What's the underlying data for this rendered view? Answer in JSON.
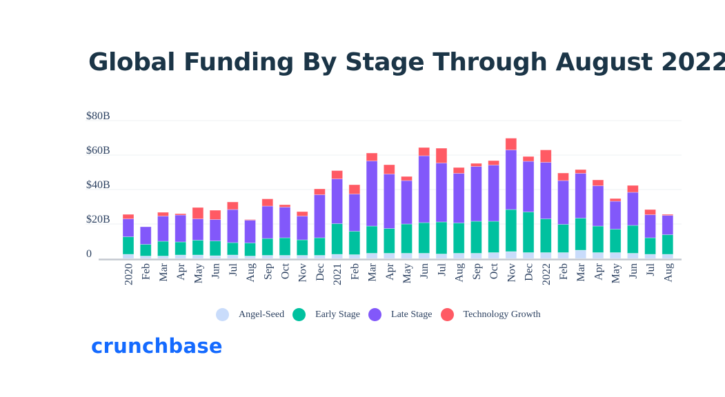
{
  "title": "Global Funding By Stage Through August 2022",
  "brand": "crunchbase",
  "chart_data": {
    "type": "bar",
    "stacked": true,
    "title": "Global Funding By Stage Through August 2022",
    "xlabel": "",
    "ylabel": "",
    "ylim": [
      0,
      80
    ],
    "yticks": [
      0,
      20,
      40,
      60,
      80
    ],
    "ytick_labels": [
      "0",
      "$20B",
      "$40B",
      "$60B",
      "$80B"
    ],
    "grid": true,
    "legend_position": "bottom",
    "categories": [
      "2020",
      "Feb",
      "Mar",
      "Apr",
      "May",
      "Jun",
      "Jul",
      "Aug",
      "Sep",
      "Oct",
      "Nov",
      "Dec",
      "2021",
      "Feb",
      "Mar",
      "Apr",
      "May",
      "Jun",
      "Jul",
      "Aug",
      "Sep",
      "Oct",
      "Nov",
      "Dec",
      "2022",
      "Feb",
      "Mar",
      "Apr",
      "May",
      "Jun",
      "Jul",
      "Aug"
    ],
    "series": [
      {
        "name": "Angel-Seed",
        "color": "#c9dcfb",
        "values": [
          2.4,
          1.4,
          1.4,
          2.0,
          2.0,
          1.6,
          2.0,
          1.4,
          1.8,
          1.8,
          1.8,
          1.8,
          2.4,
          2.2,
          3.0,
          3.0,
          3.0,
          3.0,
          2.6,
          3.0,
          3.0,
          3.4,
          4.0,
          3.4,
          3.4,
          3.4,
          4.8,
          3.4,
          3.4,
          3.0,
          2.4,
          2.4
        ]
      },
      {
        "name": "Early Stage",
        "color": "#00c19f",
        "values": [
          10.2,
          6.8,
          8.6,
          7.6,
          8.6,
          8.6,
          7.2,
          7.6,
          9.8,
          10.2,
          9.0,
          10.2,
          17.8,
          13.6,
          15.8,
          14.4,
          17.0,
          17.8,
          18.6,
          17.6,
          18.6,
          18.2,
          24.4,
          23.6,
          19.6,
          16.4,
          18.6,
          15.4,
          13.6,
          16.2,
          9.6,
          11.4
        ]
      },
      {
        "name": "Late Stage",
        "color": "#8258fa",
        "values": [
          10.4,
          10.2,
          14.6,
          15.6,
          12.4,
          12.4,
          19.2,
          13.2,
          18.8,
          17.8,
          13.8,
          25.0,
          26.0,
          21.6,
          37.8,
          31.6,
          25.2,
          38.8,
          34.2,
          28.8,
          31.8,
          32.6,
          34.6,
          29.4,
          32.8,
          25.4,
          26.0,
          23.4,
          16.2,
          19.2,
          13.4,
          11.2
        ]
      },
      {
        "name": "Technology Growth",
        "color": "#ff5a64",
        "values": [
          2.6,
          0.0,
          2.2,
          0.8,
          6.6,
          5.4,
          4.4,
          0.4,
          4.2,
          1.4,
          2.6,
          3.4,
          4.8,
          5.4,
          4.6,
          5.4,
          2.4,
          4.8,
          8.6,
          3.4,
          1.8,
          2.6,
          6.8,
          2.8,
          7.2,
          4.4,
          2.2,
          3.4,
          1.6,
          4.0,
          3.0,
          0.6
        ]
      }
    ]
  }
}
